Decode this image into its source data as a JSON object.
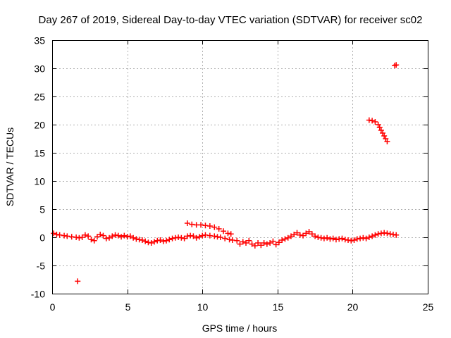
{
  "chart_data": {
    "type": "scatter",
    "title": "Day 267 of 2019, Sidereal Day-to-day VTEC variation (SDTVAR) for receiver sc02",
    "xlabel": "GPS time / hours",
    "ylabel": "SDTVAR / TECUs",
    "xlim": [
      0,
      25
    ],
    "ylim": [
      -10,
      35
    ],
    "xticks": [
      0,
      5,
      10,
      15,
      20,
      25
    ],
    "yticks": [
      -10,
      -5,
      0,
      5,
      10,
      15,
      20,
      25,
      30,
      35
    ],
    "grid": true,
    "marker": "+",
    "color": "#ff0000",
    "series": [
      {
        "name": "SDTVAR",
        "points": [
          [
            0.1,
            0.7
          ],
          [
            0.3,
            0.5
          ],
          [
            0.5,
            0.4
          ],
          [
            0.8,
            0.3
          ],
          [
            1.0,
            0.2
          ],
          [
            1.3,
            0.1
          ],
          [
            1.6,
            0.0
          ],
          [
            1.8,
            -0.1
          ],
          [
            2.0,
            0.0
          ],
          [
            2.2,
            0.4
          ],
          [
            2.4,
            0.2
          ],
          [
            2.6,
            -0.4
          ],
          [
            2.8,
            -0.6
          ],
          [
            3.0,
            0.1
          ],
          [
            3.2,
            0.5
          ],
          [
            3.4,
            0.3
          ],
          [
            3.6,
            -0.2
          ],
          [
            3.8,
            -0.1
          ],
          [
            4.0,
            0.2
          ],
          [
            4.2,
            0.4
          ],
          [
            4.4,
            0.3
          ],
          [
            4.6,
            0.1
          ],
          [
            4.8,
            0.3
          ],
          [
            5.0,
            0.1
          ],
          [
            5.2,
            0.2
          ],
          [
            5.4,
            -0.1
          ],
          [
            5.6,
            -0.3
          ],
          [
            5.8,
            -0.4
          ],
          [
            6.0,
            -0.5
          ],
          [
            6.2,
            -0.7
          ],
          [
            6.4,
            -0.9
          ],
          [
            6.6,
            -1.0
          ],
          [
            6.8,
            -0.8
          ],
          [
            7.0,
            -0.6
          ],
          [
            7.2,
            -0.5
          ],
          [
            7.4,
            -0.7
          ],
          [
            7.6,
            -0.6
          ],
          [
            7.8,
            -0.4
          ],
          [
            8.0,
            -0.2
          ],
          [
            8.2,
            -0.1
          ],
          [
            8.4,
            0.0
          ],
          [
            8.6,
            -0.1
          ],
          [
            8.8,
            -0.2
          ],
          [
            9.0,
            0.2
          ],
          [
            9.2,
            0.3
          ],
          [
            9.4,
            0.2
          ],
          [
            9.6,
            -0.1
          ],
          [
            9.8,
            0.1
          ],
          [
            10.0,
            0.3
          ],
          [
            10.2,
            0.4
          ],
          [
            10.5,
            0.3
          ],
          [
            10.8,
            0.2
          ],
          [
            11.0,
            0.1
          ],
          [
            11.2,
            0.0
          ],
          [
            11.5,
            -0.2
          ],
          [
            11.8,
            -0.4
          ],
          [
            12.0,
            -0.5
          ],
          [
            12.3,
            -0.6
          ],
          [
            12.5,
            -1.2
          ],
          [
            12.7,
            -0.8
          ],
          [
            12.9,
            -1.0
          ],
          [
            13.1,
            -0.6
          ],
          [
            13.3,
            -1.2
          ],
          [
            13.5,
            -1.5
          ],
          [
            13.7,
            -1.0
          ],
          [
            13.9,
            -1.4
          ],
          [
            14.1,
            -1.0
          ],
          [
            14.3,
            -1.2
          ],
          [
            14.5,
            -1.0
          ],
          [
            14.7,
            -0.7
          ],
          [
            14.9,
            -1.3
          ],
          [
            15.1,
            -0.9
          ],
          [
            15.3,
            -0.5
          ],
          [
            15.5,
            -0.3
          ],
          [
            15.7,
            -0.1
          ],
          [
            15.9,
            0.2
          ],
          [
            16.1,
            0.5
          ],
          [
            16.3,
            0.8
          ],
          [
            16.5,
            0.4
          ],
          [
            16.7,
            0.3
          ],
          [
            16.9,
            0.7
          ],
          [
            17.1,
            1.0
          ],
          [
            17.3,
            0.6
          ],
          [
            17.5,
            0.2
          ],
          [
            17.7,
            0.0
          ],
          [
            17.9,
            -0.1
          ],
          [
            18.1,
            -0.2
          ],
          [
            18.3,
            -0.1
          ],
          [
            18.5,
            -0.3
          ],
          [
            18.7,
            -0.2
          ],
          [
            18.9,
            -0.4
          ],
          [
            19.1,
            -0.3
          ],
          [
            19.3,
            -0.2
          ],
          [
            19.5,
            -0.4
          ],
          [
            19.7,
            -0.5
          ],
          [
            19.9,
            -0.6
          ],
          [
            20.1,
            -0.5
          ],
          [
            20.3,
            -0.3
          ],
          [
            20.5,
            -0.2
          ],
          [
            20.7,
            -0.1
          ],
          [
            20.9,
            -0.2
          ],
          [
            21.1,
            0.0
          ],
          [
            21.3,
            0.2
          ],
          [
            21.5,
            0.4
          ],
          [
            21.7,
            0.6
          ],
          [
            21.9,
            0.7
          ],
          [
            22.1,
            0.8
          ],
          [
            22.3,
            0.7
          ],
          [
            22.5,
            0.6
          ],
          [
            22.7,
            0.5
          ],
          [
            22.9,
            0.4
          ],
          [
            9.0,
            2.5
          ],
          [
            9.3,
            2.3
          ],
          [
            9.6,
            2.2
          ],
          [
            9.9,
            2.2
          ],
          [
            10.2,
            2.1
          ],
          [
            10.5,
            2.0
          ],
          [
            10.8,
            1.8
          ],
          [
            11.1,
            1.5
          ],
          [
            11.4,
            1.1
          ],
          [
            11.7,
            0.7
          ],
          [
            11.9,
            0.6
          ],
          [
            21.1,
            20.8
          ],
          [
            21.3,
            20.7
          ],
          [
            21.5,
            20.5
          ],
          [
            21.7,
            20.0
          ],
          [
            21.8,
            19.5
          ],
          [
            21.9,
            19.0
          ],
          [
            22.0,
            18.5
          ],
          [
            22.1,
            18.0
          ],
          [
            22.2,
            17.5
          ],
          [
            22.3,
            17.0
          ],
          [
            22.8,
            30.5
          ],
          [
            22.9,
            30.6
          ],
          [
            1.7,
            -7.8
          ]
        ]
      }
    ]
  }
}
